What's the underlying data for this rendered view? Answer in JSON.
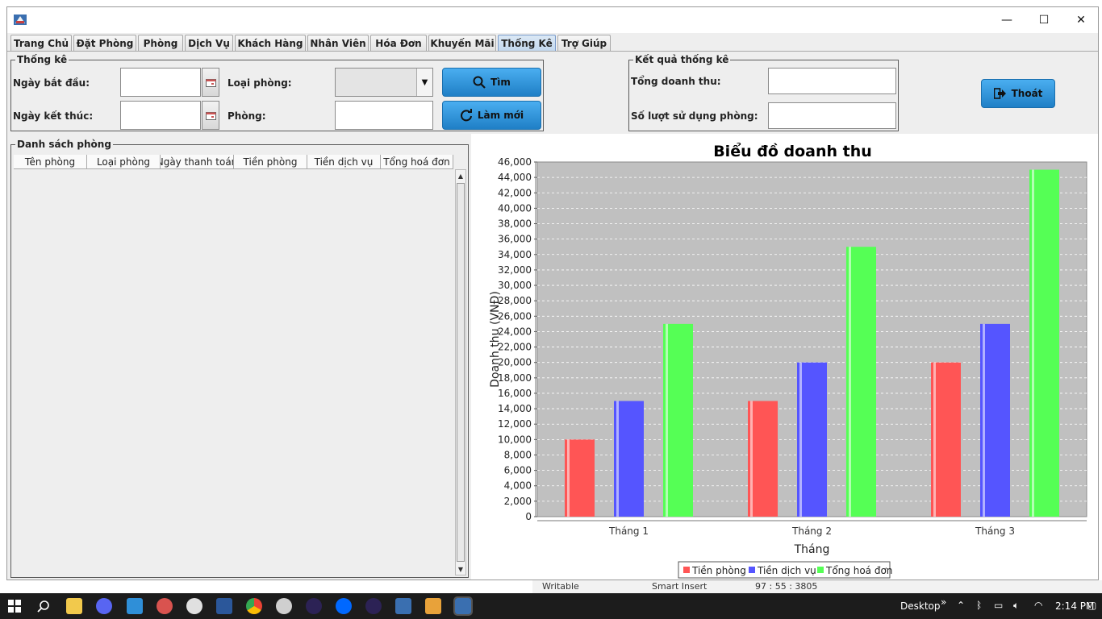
{
  "window": {
    "minimize": "—",
    "maximize": "☐",
    "close": "✕"
  },
  "tabs": [
    "Trang Chủ",
    "Đặt Phòng",
    "Phòng",
    "Dịch Vụ",
    "Khách Hàng",
    "Nhân Viên",
    "Hóa Đơn",
    "Khuyến Mãi",
    "Thống Kê",
    "Trợ Giúp"
  ],
  "active_tab": "Thống Kê",
  "stats_group": {
    "title": "Thống kê",
    "start_date_label": "Ngày bắt đầu:",
    "end_date_label": "Ngày kết thúc:",
    "room_type_label": "Loại phòng:",
    "room_label": "Phòng:",
    "start_date_value": "",
    "end_date_value": "",
    "room_type_value": "",
    "room_value": "",
    "search_button": "Tìm",
    "reset_button": "Làm mới"
  },
  "result_group": {
    "title": "Kết quả thống kê",
    "total_revenue_label": "Tổng doanh thu:",
    "room_usage_label": "Số lượt sử dụng phòng:",
    "total_revenue_value": "",
    "room_usage_value": ""
  },
  "exit_button": "Thoát",
  "room_list": {
    "title": "Danh sách phòng",
    "columns": [
      "Tên phòng",
      "Loại phòng",
      "Ngày thanh toán",
      "Tiền phòng",
      "Tiền dịch vụ",
      "Tổng hoá đơn"
    ],
    "rows": []
  },
  "chart_data": {
    "type": "bar",
    "title": "Biểu đồ doanh thu",
    "xlabel": "Tháng",
    "ylabel": "Doanh thu (VNĐ)",
    "categories": [
      "Tháng 1",
      "Tháng 2",
      "Tháng 3"
    ],
    "series": [
      {
        "name": "Tiền phòng",
        "color": "#ff5555",
        "values": [
          10000,
          15000,
          20000
        ]
      },
      {
        "name": "Tiền dịch vụ",
        "color": "#5555ff",
        "values": [
          15000,
          20000,
          25000
        ]
      },
      {
        "name": "Tổng hoá đơn",
        "color": "#55ff55",
        "values": [
          25000,
          35000,
          45000
        ]
      }
    ],
    "ylim": [
      0,
      46000
    ],
    "yticks": [
      "0",
      "2,000",
      "4,000",
      "6,000",
      "8,000",
      "10,000",
      "12,000",
      "14,000",
      "16,000",
      "18,000",
      "20,000",
      "22,000",
      "24,000",
      "26,000",
      "28,000",
      "30,000",
      "32,000",
      "34,000",
      "36,000",
      "38,000",
      "40,000",
      "42,000",
      "44,000",
      "46,000"
    ],
    "grid": true,
    "legend_position": "bottom",
    "plot_background": "#c0c0c0"
  },
  "background_app": {
    "status_writable": "Writable",
    "status_insert": "Smart Insert",
    "status_position": "97 : 55 : 3805"
  },
  "taskbar": {
    "desktop_label": "Desktop",
    "overflow": "»",
    "time": "2:14 PM"
  }
}
